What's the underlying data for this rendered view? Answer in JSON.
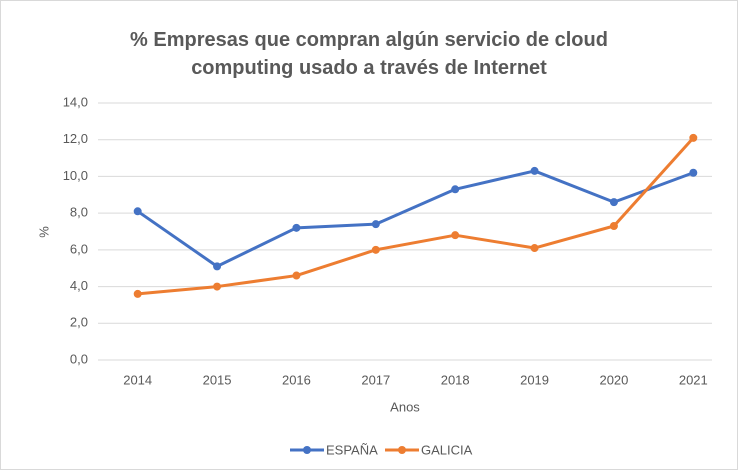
{
  "chart_data": {
    "type": "line",
    "title": "% Empresas que compran algún servicio de cloud computing usado a través de Internet",
    "x_label": "Anos",
    "y_label": "%",
    "categories": [
      "2014",
      "2015",
      "2016",
      "2017",
      "2018",
      "2019",
      "2020",
      "2021"
    ],
    "series": [
      {
        "name": "ESPAÑA",
        "color": "#4472c4",
        "values": [
          8.1,
          5.1,
          7.2,
          7.4,
          9.3,
          10.3,
          8.6,
          10.2
        ]
      },
      {
        "name": "GALICIA",
        "color": "#ed7d31",
        "values": [
          3.6,
          4.0,
          4.6,
          6.0,
          6.8,
          6.1,
          7.3,
          12.1
        ]
      }
    ],
    "ylim": [
      0,
      14
    ],
    "yticks": [
      {
        "value": 0,
        "label": "0,0"
      },
      {
        "value": 2,
        "label": "2,0"
      },
      {
        "value": 4,
        "label": "4,0"
      },
      {
        "value": 6,
        "label": "6,0"
      },
      {
        "value": 8,
        "label": "8,0"
      },
      {
        "value": 10,
        "label": "10,0"
      },
      {
        "value": 12,
        "label": "12,0"
      },
      {
        "value": 14,
        "label": "14,0"
      }
    ],
    "grid": true,
    "legend": "bottom"
  }
}
